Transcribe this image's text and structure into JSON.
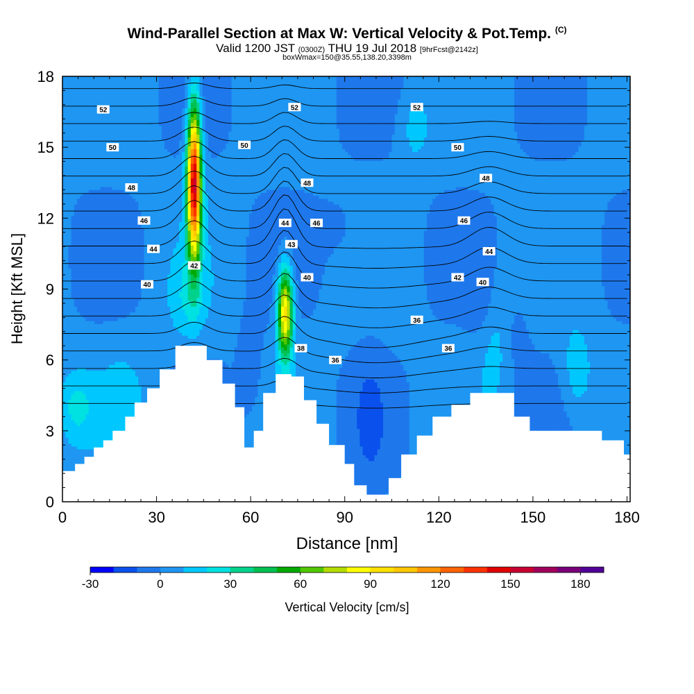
{
  "header": {
    "title": "Wind-Parallel Section at Max W: Vertical Velocity & Pot.Temp.",
    "copyright": "(C)",
    "valid_prefix": "Valid 1200 JST",
    "valid_utc": "(0300Z)",
    "valid_date": "THU 19 Jul 2018",
    "forecast": "[9hrFcst@2142z]",
    "box_info": "boxWmax=150@35.55,138.20,3398m"
  },
  "chart_data": {
    "type": "heatmap",
    "title": "Wind-Parallel Section at Max W: Vertical Velocity & Pot.Temp.",
    "xlabel": "Distance [nm]",
    "ylabel": "Height [Kft MSL]",
    "xlim": [
      0,
      181
    ],
    "ylim": [
      0,
      18
    ],
    "x_ticks": [
      0,
      30,
      60,
      90,
      120,
      150,
      180
    ],
    "y_ticks": [
      0,
      3,
      6,
      9,
      12,
      15,
      18
    ],
    "colorbar": {
      "label": "Vertical Velocity [cm/s]",
      "min": -30,
      "max": 190,
      "step": 10,
      "tick_labels": [
        -30,
        0,
        30,
        60,
        90,
        120,
        150,
        180
      ],
      "colors": [
        "#0000ff",
        "#0a50ec",
        "#1e78ec",
        "#1e96f2",
        "#00c8ff",
        "#00e1e1",
        "#00d28c",
        "#00c050",
        "#00aa00",
        "#50c800",
        "#b4dc00",
        "#ffff00",
        "#ffe100",
        "#ffc800",
        "#ff9600",
        "#ff6400",
        "#ff3200",
        "#e10000",
        "#c80032",
        "#a0005a",
        "#780078",
        "#500096"
      ]
    },
    "terrain_kft": [
      [
        0,
        1.3
      ],
      [
        4,
        1.6
      ],
      [
        7,
        1.9
      ],
      [
        10,
        2.3
      ],
      [
        13,
        2.6
      ],
      [
        16,
        3.0
      ],
      [
        20,
        3.6
      ],
      [
        23,
        4.2
      ],
      [
        27,
        4.8
      ],
      [
        31,
        5.6
      ],
      [
        36,
        6.6
      ],
      [
        41,
        6.6
      ],
      [
        46,
        6.0
      ],
      [
        51,
        5.0
      ],
      [
        55,
        4.0
      ],
      [
        58,
        2.3
      ],
      [
        61,
        3.0
      ],
      [
        64,
        4.6
      ],
      [
        68,
        5.4
      ],
      [
        73,
        5.3
      ],
      [
        77,
        4.3
      ],
      [
        81,
        3.3
      ],
      [
        85,
        2.4
      ],
      [
        90,
        1.6
      ],
      [
        93,
        0.7
      ],
      [
        97,
        0.3
      ],
      [
        101,
        0.3
      ],
      [
        104,
        1.0
      ],
      [
        108,
        2.0
      ],
      [
        113,
        2.8
      ],
      [
        118,
        3.6
      ],
      [
        124,
        4.1
      ],
      [
        130,
        4.6
      ],
      [
        138,
        4.6
      ],
      [
        144,
        3.6
      ],
      [
        149,
        3.0
      ],
      [
        157,
        3.0
      ],
      [
        165,
        3.0
      ],
      [
        172,
        2.6
      ],
      [
        179,
        2.0
      ],
      [
        181,
        2.0
      ]
    ],
    "updraft_cores": [
      {
        "x_nm": 42,
        "base_kft": 7.3,
        "top_kft": 16.8,
        "max_wcms": 150
      },
      {
        "x_nm": 71,
        "base_kft": 5.5,
        "top_kft": 10.7,
        "max_wcms": 95
      },
      {
        "x_nm": 4,
        "base_kft": 3.0,
        "top_kft": 5.2,
        "max_wcms": 25
      },
      {
        "x_nm": 164,
        "base_kft": 4.0,
        "top_kft": 7.5,
        "max_wcms": 25
      }
    ],
    "theta_contours": [
      {
        "level": 36,
        "labels": [
          [
            87,
            6.0
          ],
          [
            113,
            7.7
          ],
          [
            123,
            6.5
          ]
        ]
      },
      {
        "level": 38,
        "labels": [
          [
            76,
            6.5
          ]
        ]
      },
      {
        "level": 40,
        "labels": [
          [
            27,
            9.2
          ],
          [
            78,
            9.5
          ],
          [
            134,
            9.3
          ]
        ]
      },
      {
        "level": 42,
        "labels": [
          [
            42,
            10.0
          ],
          [
            126,
            9.5
          ]
        ]
      },
      {
        "level": 43,
        "labels": [
          [
            73,
            10.9
          ]
        ]
      },
      {
        "level": 44,
        "labels": [
          [
            29,
            10.7
          ],
          [
            71,
            11.8
          ],
          [
            136,
            10.6
          ]
        ]
      },
      {
        "level": 46,
        "labels": [
          [
            26,
            11.9
          ],
          [
            81,
            11.8
          ],
          [
            128,
            11.9
          ]
        ]
      },
      {
        "level": 48,
        "labels": [
          [
            22,
            13.3
          ],
          [
            78,
            13.5
          ],
          [
            135,
            13.7
          ]
        ]
      },
      {
        "level": 50,
        "labels": [
          [
            16,
            15.0
          ],
          [
            58,
            15.1
          ],
          [
            126,
            15.0
          ]
        ]
      },
      {
        "level": 52,
        "labels": [
          [
            13,
            16.6
          ],
          [
            74,
            16.7
          ],
          [
            113,
            16.7
          ]
        ]
      }
    ]
  }
}
